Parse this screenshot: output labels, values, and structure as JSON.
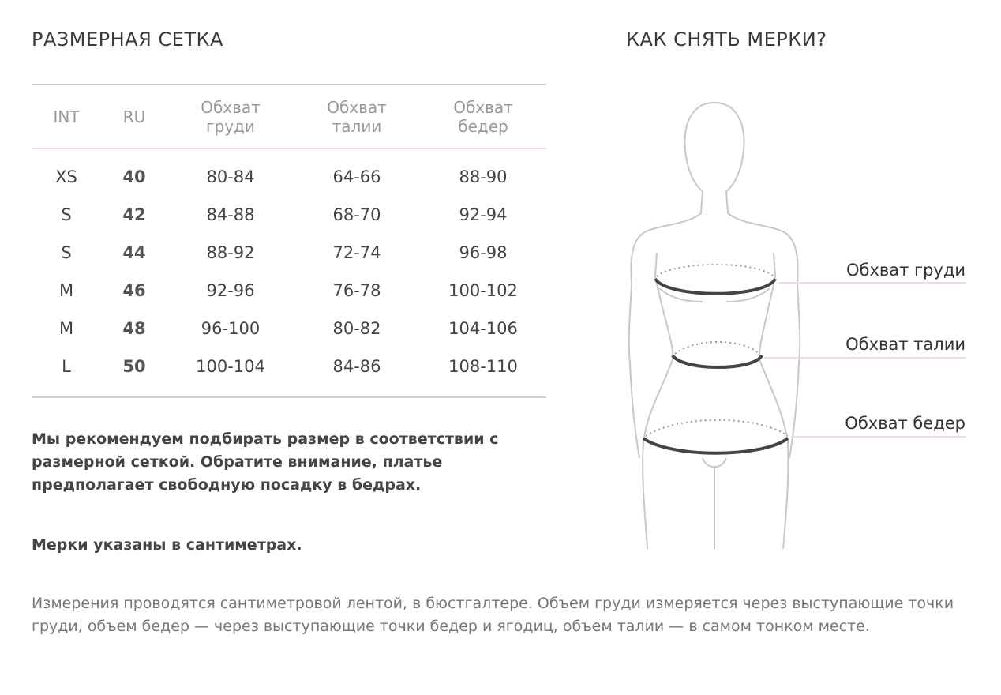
{
  "size_chart": {
    "title": "РАЗМЕРНАЯ СЕТКА",
    "headers": [
      {
        "l1": "INT",
        "l2": ""
      },
      {
        "l1": "RU",
        "l2": ""
      },
      {
        "l1": "Обхват",
        "l2": "груди"
      },
      {
        "l1": "Обхват",
        "l2": "талии"
      },
      {
        "l1": "Обхват",
        "l2": "бедер"
      }
    ],
    "rows": [
      [
        "XS",
        "40",
        "80-84",
        "64-66",
        "88-90"
      ],
      [
        "S",
        "42",
        "84-88",
        "68-70",
        "92-94"
      ],
      [
        "S",
        "44",
        "88-92",
        "72-74",
        "96-98"
      ],
      [
        "M",
        "46",
        "92-96",
        "76-78",
        "100-102"
      ],
      [
        "M",
        "48",
        "96-100",
        "80-82",
        "104-106"
      ],
      [
        "L",
        "50",
        "100-104",
        "84-86",
        "108-110"
      ]
    ],
    "recommendation": "Мы рекомендуем подбирать размер в соответствии с размерной сеткой. Обратите внимание, платье предполагает свободную посадку в бедрах.",
    "units_note": "Мерки указаны в сантиметрах."
  },
  "how_to": {
    "title": "КАК СНЯТЬ МЕРКИ?",
    "labels": {
      "chest": "Обхват груди",
      "waist": "Обхват талии",
      "hips": "Обхват бедер"
    }
  },
  "footer": "Измерения проводятся сантиметровой лентой, в бюстгалтере. Объем груди измеряется через выступающие точки груди, объем бедер — через выступающие точки бедер и ягодиц, объем талии — в самом тонком месте.",
  "colors": {
    "accent_line": "#f2ddd4",
    "rule": "#cfcfcf"
  }
}
